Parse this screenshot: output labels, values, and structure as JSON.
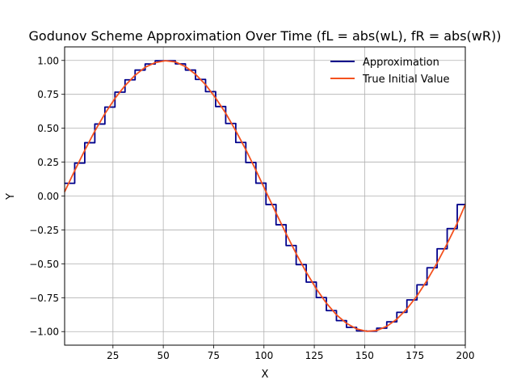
{
  "chart_data": {
    "type": "line",
    "title": "Godunov Scheme Approximation Over Time (fL = abs(wL), fR = abs(wR))",
    "xlabel": "X",
    "ylabel": "Y",
    "xlim": [
      1,
      200
    ],
    "ylim": [
      -1.1,
      1.1
    ],
    "grid": true,
    "legend": "top-right",
    "xticks": [
      25,
      50,
      75,
      100,
      125,
      150,
      175,
      200
    ],
    "yticks": [
      -1.0,
      -0.75,
      -0.5,
      -0.25,
      0.0,
      0.25,
      0.5,
      0.75,
      1.0
    ],
    "xtick_labels": [
      "25",
      "50",
      "75",
      "100",
      "125",
      "150",
      "175",
      "200"
    ],
    "ytick_labels": [
      "−1.00",
      "−0.75",
      "−0.50",
      "−0.25",
      "0.00",
      "0.25",
      "0.50",
      "0.75",
      "1.00"
    ],
    "series": [
      {
        "name": "Approximation",
        "color": "#00008b",
        "style": "steps",
        "cell_width": 5,
        "x": [
          1,
          6,
          11,
          16,
          21,
          26,
          31,
          36,
          41,
          46,
          51,
          56,
          61,
          66,
          71,
          76,
          81,
          86,
          91,
          96,
          101,
          106,
          111,
          116,
          121,
          126,
          131,
          136,
          141,
          146,
          151,
          156,
          161,
          166,
          171,
          176,
          181,
          186,
          191,
          196
        ],
        "y": [
          0.094,
          0.243,
          0.393,
          0.531,
          0.656,
          0.766,
          0.857,
          0.929,
          0.974,
          0.998,
          0.998,
          0.975,
          0.929,
          0.86,
          0.77,
          0.66,
          0.535,
          0.395,
          0.247,
          0.095,
          -0.063,
          -0.212,
          -0.365,
          -0.506,
          -0.635,
          -0.749,
          -0.845,
          -0.919,
          -0.969,
          -0.995,
          -0.997,
          -0.975,
          -0.928,
          -0.858,
          -0.766,
          -0.655,
          -0.529,
          -0.389,
          -0.24,
          -0.063
        ]
      },
      {
        "name": "True Initial Value",
        "color": "#f4511e",
        "style": "line",
        "x": [
          1,
          6,
          11,
          16,
          21,
          26,
          31,
          36,
          41,
          46,
          51,
          56,
          61,
          66,
          71,
          76,
          81,
          86,
          91,
          96,
          101,
          106,
          111,
          116,
          121,
          126,
          131,
          136,
          141,
          146,
          151,
          156,
          161,
          166,
          171,
          176,
          181,
          186,
          191,
          196,
          200
        ],
        "y": [
          0.031,
          0.187,
          0.337,
          0.479,
          0.607,
          0.72,
          0.814,
          0.891,
          0.95,
          0.984,
          0.998,
          0.989,
          0.955,
          0.898,
          0.821,
          0.723,
          0.611,
          0.481,
          0.342,
          0.19,
          0.032,
          -0.125,
          -0.278,
          -0.425,
          -0.562,
          -0.684,
          -0.79,
          -0.876,
          -0.939,
          -0.98,
          -0.998,
          -0.992,
          -0.961,
          -0.908,
          -0.832,
          -0.737,
          -0.622,
          -0.493,
          -0.351,
          -0.2,
          -0.063
        ]
      }
    ]
  }
}
